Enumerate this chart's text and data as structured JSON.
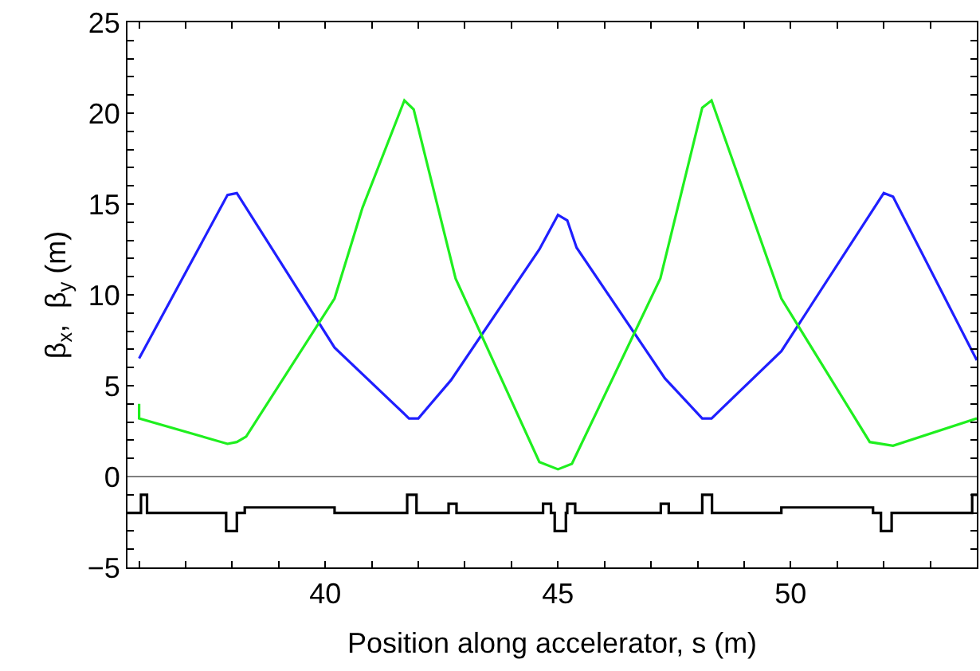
{
  "chart_data": {
    "type": "line",
    "xlabel": "Position along accelerator, s (m)",
    "ylabel": "β$_{x}$,  β$_{y}$ (m)",
    "xlim": [
      35.75,
      54
    ],
    "ylim": [
      -5,
      25
    ],
    "xticks": [
      {
        "value": 36,
        "label": null
      },
      {
        "value": 37,
        "label": null
      },
      {
        "value": 38,
        "label": null
      },
      {
        "value": 39,
        "label": null
      },
      40,
      {
        "value": 41,
        "label": null
      },
      {
        "value": 42,
        "label": null
      },
      {
        "value": 43,
        "label": null
      },
      {
        "value": 44,
        "label": null
      },
      45,
      {
        "value": 46,
        "label": null
      },
      {
        "value": 47,
        "label": null
      },
      {
        "value": 48,
        "label": null
      },
      {
        "value": 49,
        "label": null
      },
      50,
      {
        "value": 51,
        "label": null
      },
      {
        "value": 52,
        "label": null
      },
      {
        "value": 53,
        "label": null
      }
    ],
    "yticks": [
      -5,
      {
        "value": -4,
        "label": null
      },
      {
        "value": -3,
        "label": null
      },
      {
        "value": -2,
        "label": null
      },
      {
        "value": -1,
        "label": null
      },
      0,
      {
        "value": 1,
        "label": null
      },
      {
        "value": 2,
        "label": null
      },
      {
        "value": 3,
        "label": null
      },
      {
        "value": 4,
        "label": null
      },
      5,
      {
        "value": 6,
        "label": null
      },
      {
        "value": 7,
        "label": null
      },
      {
        "value": 8,
        "label": null
      },
      {
        "value": 9,
        "label": null
      },
      10,
      {
        "value": 11,
        "label": null
      },
      {
        "value": 12,
        "label": null
      },
      {
        "value": 13,
        "label": null
      },
      {
        "value": 14,
        "label": null
      },
      15,
      {
        "value": 16,
        "label": null
      },
      {
        "value": 17,
        "label": null
      },
      {
        "value": 18,
        "label": null
      },
      {
        "value": 19,
        "label": null
      },
      20,
      {
        "value": 21,
        "label": null
      },
      {
        "value": 22,
        "label": null
      },
      {
        "value": 23,
        "label": null
      },
      {
        "value": 24,
        "label": null
      },
      25
    ],
    "marker": "none",
    "line_style": "solid",
    "ref_lines": [
      {
        "axis": "y",
        "value": 0,
        "color": "#808080"
      }
    ],
    "series": [
      {
        "color": "#1f1fff",
        "x": [
          36.0,
          37.9,
          38.1,
          40.2,
          41.8,
          42.0,
          42.7,
          44.6,
          45.0,
          45.2,
          45.4,
          47.3,
          48.1,
          48.3,
          49.8,
          52.0,
          52.2,
          54.0
        ],
        "values": [
          6.5,
          15.5,
          15.6,
          7.1,
          3.2,
          3.2,
          5.3,
          12.5,
          14.4,
          14.1,
          12.6,
          5.4,
          3.2,
          3.2,
          6.9,
          15.6,
          15.4,
          6.4
        ]
      },
      {
        "color": "#1fef1f",
        "x": [
          36.0,
          36.0,
          37.9,
          38.1,
          38.3,
          40.2,
          40.8,
          41.7,
          41.9,
          42.8,
          44.6,
          45.0,
          45.3,
          47.2,
          48.1,
          48.3,
          49.8,
          51.7,
          52.2,
          54.0
        ],
        "values": [
          4.0,
          3.2,
          1.8,
          1.9,
          2.2,
          9.8,
          14.8,
          20.7,
          20.2,
          10.9,
          0.8,
          0.4,
          0.7,
          10.9,
          20.3,
          20.7,
          9.8,
          1.9,
          1.7,
          3.2
        ]
      },
      {
        "color": "#000000",
        "x": [
          35.75,
          36.04,
          36.04,
          36.17,
          36.17,
          37.87,
          37.87,
          38.1,
          38.1,
          38.27,
          38.27,
          40.2,
          40.2,
          41.76,
          41.76,
          41.96,
          41.96,
          42.65,
          42.65,
          42.82,
          42.82,
          44.68,
          44.68,
          44.85,
          44.85,
          44.93,
          44.93,
          45.17,
          45.17,
          45.2,
          45.2,
          45.37,
          45.37,
          47.21,
          47.21,
          47.38,
          47.38,
          48.1,
          48.1,
          48.31,
          48.31,
          49.8,
          49.8,
          51.77,
          51.77,
          51.94,
          51.94,
          52.17,
          52.17,
          53.9,
          53.9,
          54.0
        ],
        "values": [
          -2,
          -2,
          -1,
          -1,
          -2,
          -2,
          -3,
          -3,
          -2,
          -2,
          -1.7,
          -1.7,
          -2,
          -2,
          -1,
          -1,
          -2,
          -2,
          -1.5,
          -1.5,
          -2,
          -2,
          -1.5,
          -1.5,
          -2,
          -2,
          -3,
          -3,
          -2,
          -2,
          -1.5,
          -1.5,
          -2,
          -2,
          -1.5,
          -1.5,
          -2,
          -2,
          -1,
          -1,
          -2,
          -2,
          -1.7,
          -1.7,
          -2,
          -2,
          -3,
          -3,
          -2,
          -2,
          -1,
          -1
        ]
      }
    ]
  }
}
